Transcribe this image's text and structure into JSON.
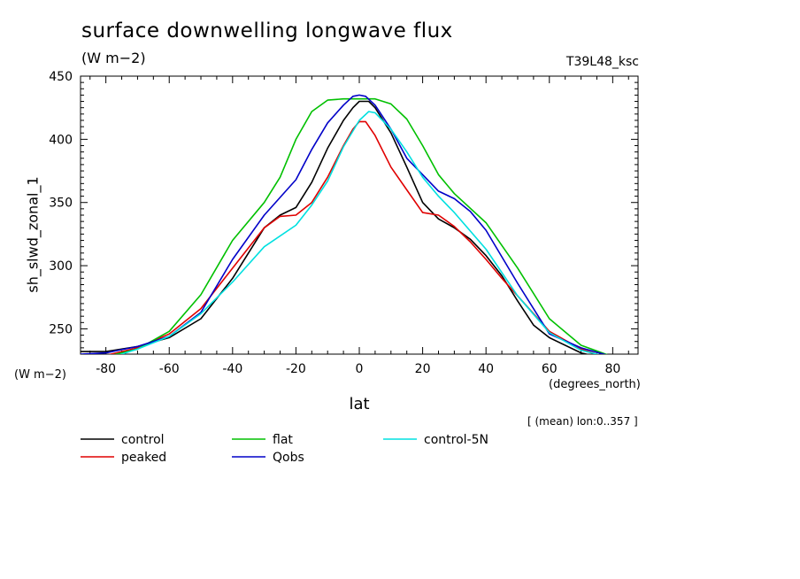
{
  "chart_data": {
    "type": "line",
    "title": "surface downwelling longwave flux",
    "units": "(W m−2)",
    "run_label": "T39L48_ksc",
    "xlabel": "lat",
    "ylabel": "sh_slwd_zonal_1",
    "x_units": "(degrees_north)",
    "y_units": "(W m−2)",
    "subset_note": "[ (mean) lon:0..357 ]",
    "xlim": [
      -88,
      88
    ],
    "ylim": [
      230,
      450
    ],
    "x_ticks": [
      -80,
      -60,
      -40,
      -20,
      0,
      20,
      40,
      60,
      80
    ],
    "x_tick_labels": [
      "-80",
      "-60",
      "-40",
      "-20",
      "0",
      "20",
      "40",
      "60",
      "80"
    ],
    "y_ticks": [
      250,
      300,
      350,
      400,
      450
    ],
    "y_tick_labels": [
      "250",
      "300",
      "350",
      "400",
      "450"
    ],
    "grid": false,
    "legend_position": "below",
    "series": [
      {
        "name": "control",
        "color": "#000000",
        "x": [
          -88,
          -80,
          -70,
          -60,
          -50,
          -40,
          -30,
          -25,
          -20,
          -15,
          -10,
          -5,
          -2,
          0,
          3,
          5,
          10,
          15,
          20,
          25,
          30,
          35,
          40,
          45,
          50,
          55,
          60,
          70,
          80,
          88
        ],
        "y": [
          232,
          232,
          236,
          243,
          258,
          290,
          330,
          340,
          346,
          366,
          393,
          415,
          425,
          430,
          430,
          425,
          405,
          378,
          350,
          337,
          330,
          321,
          308,
          292,
          272,
          253,
          243,
          231,
          225,
          223
        ]
      },
      {
        "name": "peaked",
        "color": "#e00000",
        "x": [
          -88,
          -85,
          -80,
          -70,
          -60,
          -50,
          -40,
          -30,
          -25,
          -20,
          -15,
          -10,
          -5,
          -2,
          0,
          2,
          5,
          10,
          15,
          20,
          25,
          30,
          35,
          40,
          45,
          50,
          55,
          60,
          70,
          80,
          88
        ],
        "y": [
          225,
          225,
          229,
          235,
          246,
          266,
          298,
          330,
          339,
          340,
          350,
          370,
          395,
          408,
          414,
          414,
          403,
          378,
          360,
          342,
          340,
          331,
          319,
          305,
          290,
          276,
          262,
          248,
          234,
          226,
          224
        ]
      },
      {
        "name": "flat",
        "color": "#00c000",
        "x": [
          -88,
          -80,
          -70,
          -60,
          -50,
          -40,
          -30,
          -25,
          -20,
          -15,
          -10,
          -5,
          0,
          5,
          10,
          15,
          20,
          25,
          30,
          40,
          50,
          60,
          70,
          80,
          88
        ],
        "y": [
          227,
          228,
          234,
          248,
          277,
          320,
          350,
          370,
          400,
          422,
          431,
          432,
          432,
          432,
          428,
          416,
          395,
          372,
          357,
          334,
          298,
          258,
          237,
          228,
          227
        ]
      },
      {
        "name": "Qobs",
        "color": "#0000c8",
        "x": [
          -88,
          -80,
          -70,
          -60,
          -50,
          -40,
          -30,
          -25,
          -20,
          -15,
          -10,
          -5,
          -2,
          0,
          2,
          5,
          10,
          15,
          20,
          25,
          30,
          35,
          40,
          50,
          60,
          70,
          80,
          88
        ],
        "y": [
          230,
          231,
          236,
          244,
          263,
          305,
          340,
          354,
          368,
          392,
          413,
          427,
          434,
          435,
          434,
          427,
          408,
          385,
          372,
          359,
          353,
          343,
          328,
          286,
          246,
          235,
          228,
          225
        ]
      },
      {
        "name": "control-5N",
        "color": "#00e0e0",
        "x": [
          -88,
          -85,
          -80,
          -70,
          -60,
          -50,
          -40,
          -30,
          -20,
          -15,
          -10,
          -5,
          0,
          3,
          5,
          10,
          15,
          20,
          25,
          30,
          40,
          50,
          60,
          70,
          80,
          88
        ],
        "y": [
          220,
          221,
          226,
          234,
          244,
          262,
          287,
          315,
          332,
          348,
          367,
          394,
          415,
          422,
          421,
          408,
          390,
          370,
          355,
          342,
          313,
          276,
          247,
          233,
          227,
          224
        ]
      }
    ]
  }
}
